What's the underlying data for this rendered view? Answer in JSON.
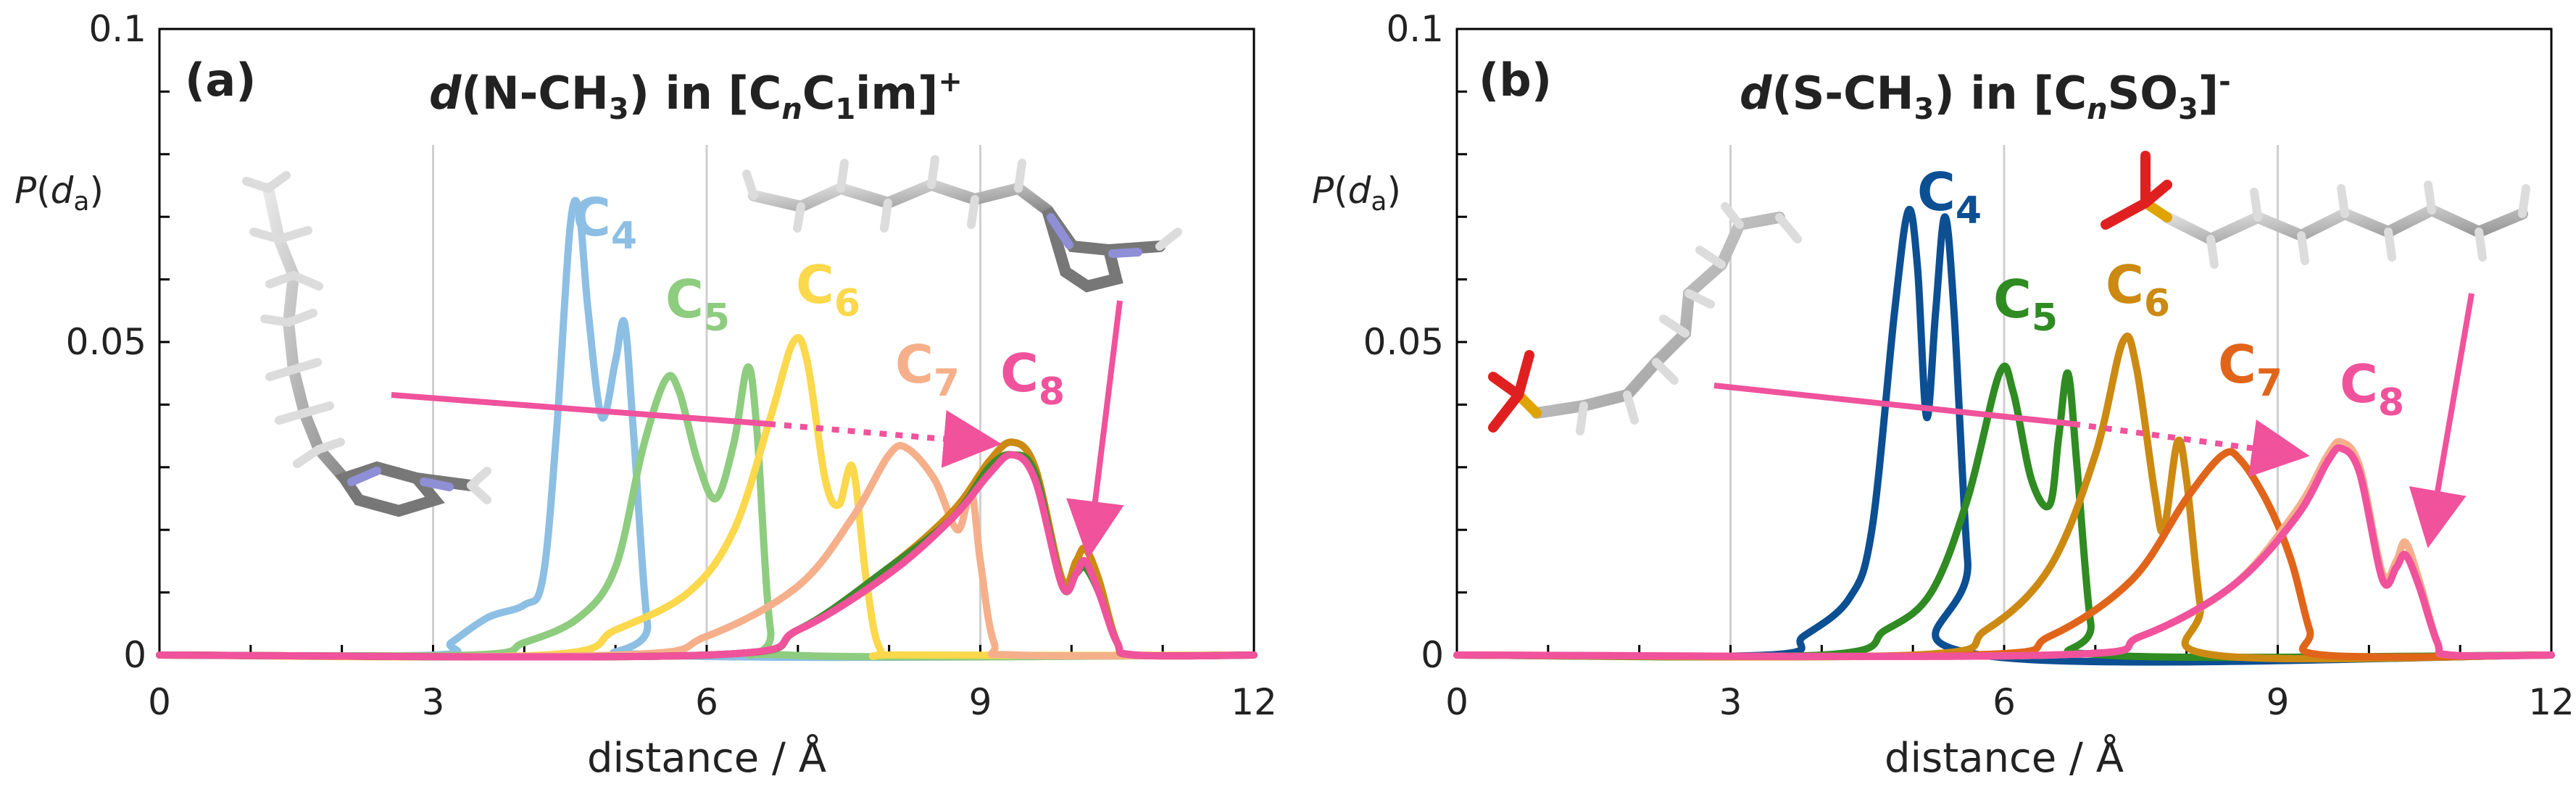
{
  "chart_data": [
    {
      "type": "line",
      "panel": "(a)",
      "title": "d(N-CH3) in [CnC1im]+",
      "title_parts": {
        "d": "d",
        "group": "(N-CH",
        "sub3": "3",
        "mid": ") in [C",
        "n": "n",
        "c1": "C",
        "sub1": "1",
        "im": "im]",
        "charge": "+"
      },
      "xlabel": "distance / Å",
      "ylabel": {
        "p": "P",
        "open": "(",
        "d": "d",
        "sub": "a",
        "close": ")"
      },
      "xlim": [
        0,
        12
      ],
      "ylim": [
        0,
        0.1
      ],
      "xticks": [
        "0",
        "3",
        "6",
        "9",
        "12"
      ],
      "yticks": [
        "0",
        "0.05",
        "0.1"
      ],
      "gridlines_x": [
        3,
        6,
        9
      ],
      "legend_position": "inline labels above peaks",
      "series": [
        {
          "name": "C4",
          "label_main": "C",
          "label_sub": "4",
          "color": "#8cbfe3",
          "points": [
            [
              0,
              0
            ],
            [
              3.0,
              0
            ],
            [
              3.2,
              0.002
            ],
            [
              3.6,
              0.006
            ],
            [
              4.0,
              0.008
            ],
            [
              4.2,
              0.012
            ],
            [
              4.35,
              0.035
            ],
            [
              4.5,
              0.068
            ],
            [
              4.6,
              0.071
            ],
            [
              4.7,
              0.055
            ],
            [
              4.85,
              0.038
            ],
            [
              5.0,
              0.047
            ],
            [
              5.1,
              0.053
            ],
            [
              5.2,
              0.035
            ],
            [
              5.35,
              0.005
            ],
            [
              5.5,
              0
            ],
            [
              12,
              0
            ]
          ]
        },
        {
          "name": "C5",
          "label_main": "C",
          "label_sub": "5",
          "color": "#8ecc7f",
          "points": [
            [
              0,
              0
            ],
            [
              3.4,
              0
            ],
            [
              4.0,
              0.002
            ],
            [
              4.6,
              0.006
            ],
            [
              5.0,
              0.014
            ],
            [
              5.3,
              0.033
            ],
            [
              5.55,
              0.044
            ],
            [
              5.7,
              0.042
            ],
            [
              5.9,
              0.031
            ],
            [
              6.1,
              0.025
            ],
            [
              6.3,
              0.034
            ],
            [
              6.45,
              0.046
            ],
            [
              6.55,
              0.036
            ],
            [
              6.7,
              0.004
            ],
            [
              6.9,
              0
            ],
            [
              12,
              0
            ]
          ]
        },
        {
          "name": "C6",
          "label_main": "C",
          "label_sub": "6",
          "color": "#fbd84c",
          "points": [
            [
              0,
              0
            ],
            [
              4.2,
              0
            ],
            [
              5.0,
              0.004
            ],
            [
              5.8,
              0.01
            ],
            [
              6.3,
              0.02
            ],
            [
              6.7,
              0.038
            ],
            [
              6.95,
              0.05
            ],
            [
              7.1,
              0.047
            ],
            [
              7.3,
              0.028
            ],
            [
              7.45,
              0.024
            ],
            [
              7.6,
              0.03
            ],
            [
              7.75,
              0.012
            ],
            [
              7.9,
              0.001
            ],
            [
              8.2,
              0
            ],
            [
              12,
              0
            ]
          ]
        },
        {
          "name": "C7",
          "label_main": "C",
          "label_sub": "7",
          "color": "#f5b08b",
          "points": [
            [
              0,
              0
            ],
            [
              5.0,
              0
            ],
            [
              6.0,
              0.003
            ],
            [
              7.0,
              0.011
            ],
            [
              7.6,
              0.022
            ],
            [
              8.0,
              0.032
            ],
            [
              8.2,
              0.033
            ],
            [
              8.5,
              0.028
            ],
            [
              8.75,
              0.02
            ],
            [
              8.9,
              0.026
            ],
            [
              9.0,
              0.015
            ],
            [
              9.15,
              0.002
            ],
            [
              9.4,
              0
            ],
            [
              12,
              0
            ]
          ]
        },
        {
          "name": "C8-orange",
          "label_main": "",
          "label_sub": "",
          "color": "#cc8a12",
          "points": [
            [
              0,
              0
            ],
            [
              6.0,
              0
            ],
            [
              7.0,
              0.004
            ],
            [
              8.0,
              0.014
            ],
            [
              8.7,
              0.023
            ],
            [
              9.1,
              0.031
            ],
            [
              9.35,
              0.034
            ],
            [
              9.6,
              0.03
            ],
            [
              9.9,
              0.012
            ],
            [
              10.05,
              0.015
            ],
            [
              10.15,
              0.017
            ],
            [
              10.3,
              0.012
            ],
            [
              10.5,
              0.002
            ],
            [
              10.7,
              0
            ],
            [
              12,
              0
            ]
          ]
        },
        {
          "name": "C8-green",
          "label_main": "",
          "label_sub": "",
          "color": "#3b8b2c",
          "points": [
            [
              0,
              0
            ],
            [
              6.0,
              0
            ],
            [
              7.0,
              0.004
            ],
            [
              8.0,
              0.014
            ],
            [
              8.7,
              0.022
            ],
            [
              9.1,
              0.03
            ],
            [
              9.35,
              0.032
            ],
            [
              9.6,
              0.029
            ],
            [
              9.9,
              0.011
            ],
            [
              10.05,
              0.013
            ],
            [
              10.15,
              0.014
            ],
            [
              10.3,
              0.01
            ],
            [
              10.5,
              0.002
            ],
            [
              10.7,
              0
            ],
            [
              12,
              0
            ]
          ]
        },
        {
          "name": "C8",
          "label_main": "C",
          "label_sub": "8",
          "color": "#f0529c",
          "points": [
            [
              0,
              0
            ],
            [
              6.0,
              0
            ],
            [
              7.0,
              0.004
            ],
            [
              8.0,
              0.013
            ],
            [
              8.7,
              0.022
            ],
            [
              9.1,
              0.029
            ],
            [
              9.35,
              0.032
            ],
            [
              9.6,
              0.028
            ],
            [
              9.9,
              0.011
            ],
            [
              10.05,
              0.013
            ],
            [
              10.15,
              0.015
            ],
            [
              10.3,
              0.01
            ],
            [
              10.5,
              0.002
            ],
            [
              10.7,
              0
            ],
            [
              12,
              0
            ]
          ]
        }
      ]
    },
    {
      "type": "line",
      "panel": "(b)",
      "title": "d(S-CH3) in [CnSO3]-",
      "title_parts": {
        "d": "d",
        "group": "(S-CH",
        "sub3": "3",
        "mid": ") in [C",
        "n": "n",
        "c1": "SO",
        "sub1": "3",
        "im": "]",
        "charge": "-"
      },
      "xlabel": "distance / Å",
      "ylabel": {
        "p": "P",
        "open": "(",
        "d": "d",
        "sub": "a",
        "close": ")"
      },
      "xlim": [
        0,
        12
      ],
      "ylim": [
        0,
        0.1
      ],
      "xticks": [
        "0",
        "3",
        "6",
        "9",
        "12"
      ],
      "yticks": [
        "0",
        "0.05",
        "0.1"
      ],
      "gridlines_x": [
        3,
        6,
        9
      ],
      "legend_position": "inline labels above peaks",
      "series": [
        {
          "name": "C4",
          "label_main": "C",
          "label_sub": "4",
          "color": "#0c4f93",
          "points": [
            [
              0,
              0
            ],
            [
              3.4,
              0
            ],
            [
              3.8,
              0.003
            ],
            [
              4.3,
              0.009
            ],
            [
              4.55,
              0.02
            ],
            [
              4.8,
              0.055
            ],
            [
              4.95,
              0.071
            ],
            [
              5.05,
              0.062
            ],
            [
              5.15,
              0.038
            ],
            [
              5.25,
              0.055
            ],
            [
              5.35,
              0.07
            ],
            [
              5.45,
              0.055
            ],
            [
              5.6,
              0.015
            ],
            [
              5.75,
              0
            ],
            [
              12,
              0
            ]
          ]
        },
        {
          "name": "C5",
          "label_main": "C",
          "label_sub": "5",
          "color": "#2f8b22",
          "points": [
            [
              0,
              0
            ],
            [
              4.0,
              0
            ],
            [
              4.7,
              0.004
            ],
            [
              5.2,
              0.01
            ],
            [
              5.6,
              0.025
            ],
            [
              5.95,
              0.045
            ],
            [
              6.1,
              0.042
            ],
            [
              6.3,
              0.028
            ],
            [
              6.5,
              0.024
            ],
            [
              6.6,
              0.035
            ],
            [
              6.7,
              0.045
            ],
            [
              6.8,
              0.03
            ],
            [
              6.95,
              0.005
            ],
            [
              7.1,
              0
            ],
            [
              12,
              0
            ]
          ]
        },
        {
          "name": "C6",
          "label_main": "C",
          "label_sub": "6",
          "color": "#cc8a12",
          "points": [
            [
              0,
              0
            ],
            [
              5.0,
              0
            ],
            [
              5.8,
              0.004
            ],
            [
              6.5,
              0.014
            ],
            [
              7.0,
              0.032
            ],
            [
              7.3,
              0.05
            ],
            [
              7.45,
              0.046
            ],
            [
              7.65,
              0.026
            ],
            [
              7.75,
              0.02
            ],
            [
              7.9,
              0.034
            ],
            [
              8.0,
              0.028
            ],
            [
              8.15,
              0.008
            ],
            [
              8.3,
              0
            ],
            [
              12,
              0
            ]
          ]
        },
        {
          "name": "C7",
          "label_main": "C",
          "label_sub": "7",
          "color": "#e0651a",
          "points": [
            [
              0,
              0
            ],
            [
              5.6,
              0
            ],
            [
              6.5,
              0.003
            ],
            [
              7.4,
              0.012
            ],
            [
              8.0,
              0.025
            ],
            [
              8.4,
              0.032
            ],
            [
              8.6,
              0.031
            ],
            [
              8.9,
              0.024
            ],
            [
              9.15,
              0.015
            ],
            [
              9.35,
              0.004
            ],
            [
              9.5,
              0
            ],
            [
              12,
              0
            ]
          ]
        },
        {
          "name": "C8-peach",
          "label_main": "",
          "label_sub": "",
          "color": "#f5b08b",
          "points": [
            [
              0,
              0
            ],
            [
              6.5,
              0
            ],
            [
              7.5,
              0.003
            ],
            [
              8.5,
              0.011
            ],
            [
              9.2,
              0.023
            ],
            [
              9.55,
              0.032
            ],
            [
              9.7,
              0.034
            ],
            [
              9.9,
              0.03
            ],
            [
              10.15,
              0.013
            ],
            [
              10.3,
              0.015
            ],
            [
              10.4,
              0.018
            ],
            [
              10.55,
              0.012
            ],
            [
              10.75,
              0.002
            ],
            [
              10.9,
              0
            ],
            [
              12,
              0
            ]
          ]
        },
        {
          "name": "C8",
          "label_main": "C",
          "label_sub": "8",
          "color": "#f0529c",
          "points": [
            [
              0,
              0
            ],
            [
              6.5,
              0
            ],
            [
              7.5,
              0.003
            ],
            [
              8.5,
              0.011
            ],
            [
              9.2,
              0.022
            ],
            [
              9.55,
              0.031
            ],
            [
              9.7,
              0.033
            ],
            [
              9.9,
              0.029
            ],
            [
              10.15,
              0.012
            ],
            [
              10.3,
              0.014
            ],
            [
              10.4,
              0.016
            ],
            [
              10.55,
              0.011
            ],
            [
              10.75,
              0.002
            ],
            [
              10.9,
              0
            ],
            [
              12,
              0
            ]
          ]
        }
      ]
    }
  ]
}
